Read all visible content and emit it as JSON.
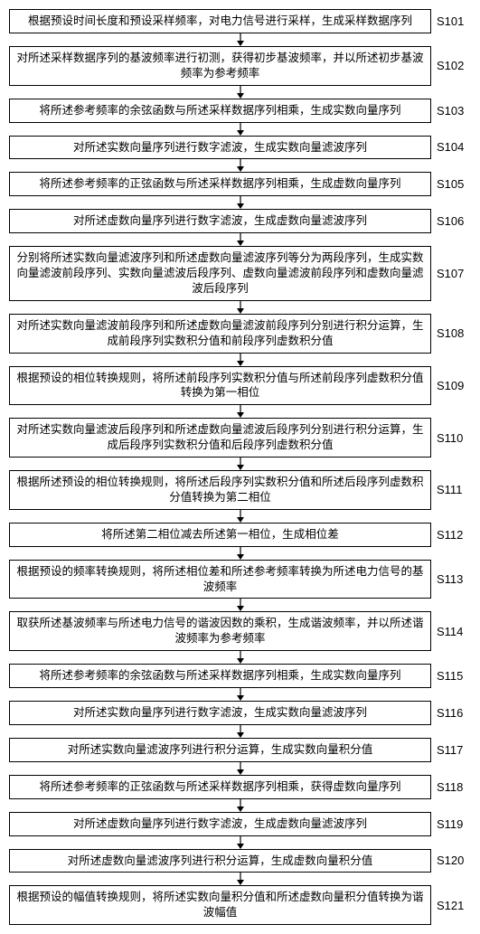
{
  "flow": {
    "type": "flowchart",
    "background_color": "#ffffff",
    "border_color": "#000000",
    "text_color": "#000000",
    "font_size_box": 12.5,
    "font_size_label": 13,
    "arrow_color": "#000000",
    "arrow_height": 14,
    "box_width_ratio": 0.9,
    "steps": [
      {
        "id": "S101",
        "text": "根据预设时间长度和预设采样频率，对电力信号进行采样，生成采样数据序列"
      },
      {
        "id": "S102",
        "text": "对所述采样数据序列的基波频率进行初测，获得初步基波频率，并以所述初步基波频率为参考频率"
      },
      {
        "id": "S103",
        "text": "将所述参考频率的余弦函数与所述采样数据序列相乘，生成实数向量序列"
      },
      {
        "id": "S104",
        "text": "对所述实数向量序列进行数字滤波，生成实数向量滤波序列"
      },
      {
        "id": "S105",
        "text": "将所述参考频率的正弦函数与所述采样数据序列相乘，生成虚数向量序列"
      },
      {
        "id": "S106",
        "text": "对所述虚数向量序列进行数字滤波，生成虚数向量滤波序列"
      },
      {
        "id": "S107",
        "text": "分别将所述实数向量滤波序列和所述虚数向量滤波序列等分为两段序列，生成实数向量滤波前段序列、实数向量滤波后段序列、虚数向量滤波前段序列和虚数向量滤波后段序列"
      },
      {
        "id": "S108",
        "text": "对所述实数向量滤波前段序列和所述虚数向量滤波前段序列分别进行积分运算，生成前段序列实数积分值和前段序列虚数积分值"
      },
      {
        "id": "S109",
        "text": "根据预设的相位转换规则，将所述前段序列实数积分值与所述前段序列虚数积分值转换为第一相位"
      },
      {
        "id": "S110",
        "text": "对所述实数向量滤波后段序列和所述虚数向量滤波后段序列分别进行积分运算，生成后段序列实数积分值和后段序列虚数积分值"
      },
      {
        "id": "S111",
        "text": "根据所述预设的相位转换规则，将所述后段序列实数积分值和所述后段序列虚数积分值转换为第二相位"
      },
      {
        "id": "S112",
        "text": "将所述第二相位减去所述第一相位，生成相位差"
      },
      {
        "id": "S113",
        "text": "根据预设的频率转换规则，将所述相位差和所述参考频率转换为所述电力信号的基波频率"
      },
      {
        "id": "S114",
        "text": "取获所述基波频率与所述电力信号的谐波因数的乘积，生成谐波频率，并以所述谐波频率为参考频率"
      },
      {
        "id": "S115",
        "text": "将所述参考频率的余弦函数与所述采样数据序列相乘，生成实数向量序列"
      },
      {
        "id": "S116",
        "text": "对所述实数向量序列进行数字滤波，生成实数向量滤波序列"
      },
      {
        "id": "S117",
        "text": "对所述实数向量滤波序列进行积分运算，生成实数向量积分值"
      },
      {
        "id": "S118",
        "text": "将所述参考频率的正弦函数与所述采样数据序列相乘，获得虚数向量序列"
      },
      {
        "id": "S119",
        "text": "对所述虚数向量序列进行数字滤波，生成虚数向量滤波序列"
      },
      {
        "id": "S120",
        "text": "对所述虚数向量滤波序列进行积分运算，生成虚数向量积分值"
      },
      {
        "id": "S121",
        "text": "根据预设的幅值转换规则，将所述实数向量积分值和所述虚数向量积分值转换为谐波幅值"
      }
    ]
  }
}
